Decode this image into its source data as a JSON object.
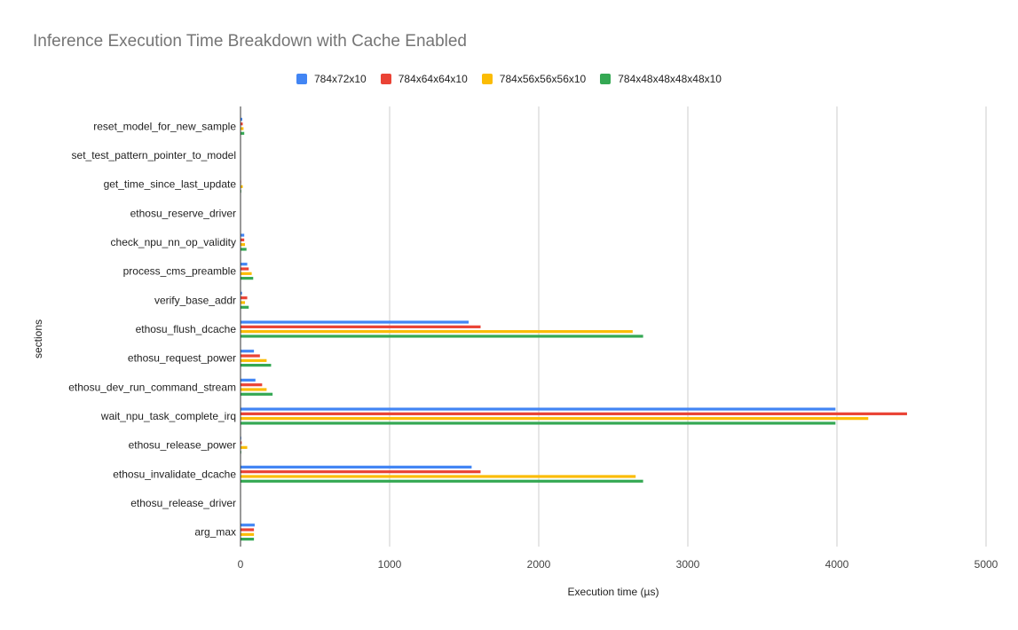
{
  "chart_data": {
    "type": "bar",
    "orientation": "horizontal",
    "title": "Inference Execution Time Breakdown with Cache Enabled",
    "xlabel": "Execution time (µs)",
    "ylabel": "sections",
    "xlim": [
      0,
      5000
    ],
    "xticks": [
      0,
      1000,
      2000,
      3000,
      4000,
      5000
    ],
    "grid": true,
    "legend_position": "top",
    "categories": [
      "reset_model_for_new_sample",
      "set_test_pattern_pointer_to_model",
      "get_time_since_last_update",
      "ethosu_reserve_driver",
      "check_npu_nn_op_validity",
      "process_cms_preamble",
      "verify_base_addr",
      "ethosu_flush_dcache",
      "ethosu_request_power",
      "ethosu_dev_run_command_stream",
      "wait_npu_task_complete_irq",
      "ethosu_release_power",
      "ethosu_invalidate_dcache",
      "ethosu_release_driver",
      "arg_max"
    ],
    "series": [
      {
        "name": "784x72x10",
        "color": "#4285F4",
        "values": [
          12,
          2,
          3,
          2,
          25,
          45,
          10,
          1530,
          90,
          100,
          3990,
          5,
          1550,
          3,
          95
        ]
      },
      {
        "name": "784x64x64x10",
        "color": "#EA4335",
        "values": [
          15,
          2,
          4,
          2,
          25,
          55,
          45,
          1610,
          130,
          145,
          4470,
          8,
          1610,
          3,
          90
        ]
      },
      {
        "name": "784x56x56x56x10",
        "color": "#FBBC04",
        "values": [
          20,
          2,
          15,
          2,
          30,
          75,
          30,
          2630,
          175,
          175,
          4210,
          45,
          2650,
          3,
          90
        ]
      },
      {
        "name": "784x48x48x48x48x10",
        "color": "#34A853",
        "values": [
          25,
          2,
          5,
          2,
          40,
          85,
          55,
          2700,
          205,
          215,
          3990,
          5,
          2700,
          3,
          90
        ]
      }
    ]
  }
}
